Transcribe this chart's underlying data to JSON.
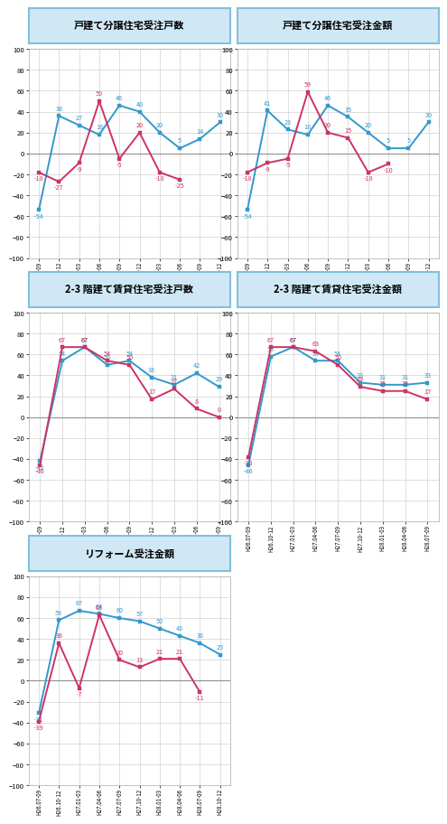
{
  "charts": [
    {
      "title": "戸建て分譲住宅受注戸数",
      "blue": [
        -54,
        36,
        27,
        18,
        46,
        40,
        20,
        5,
        14,
        30
      ],
      "red": [
        -18,
        -27,
        -9,
        50,
        -5,
        20,
        -18,
        -25,
        null,
        null
      ],
      "n": 10
    },
    {
      "title": "戸建て分譲住宅受注金額",
      "blue": [
        -54,
        41,
        23,
        18,
        46,
        35,
        20,
        5,
        5,
        30
      ],
      "red": [
        -18,
        -9,
        -5,
        59,
        20,
        15,
        -18,
        -10,
        null,
        null
      ],
      "n": 10
    },
    {
      "title": "2-3 階建て賃貸住宅受注戸数",
      "blue": [
        -42,
        54,
        67,
        50,
        54,
        38,
        31,
        42,
        29,
        null
      ],
      "red": [
        -46,
        67,
        67,
        54,
        50,
        17,
        27,
        8,
        0,
        null
      ],
      "n": 9
    },
    {
      "title": "2-3 階建て賃貸住宅受注金額",
      "blue": [
        -46,
        58,
        67,
        54,
        54,
        33,
        31,
        31,
        33,
        null
      ],
      "red": [
        -38,
        67,
        67,
        63,
        50,
        29,
        25,
        25,
        17,
        null
      ],
      "n": 9
    },
    {
      "title": "リフォーム受注金額",
      "blue": [
        -31,
        58,
        67,
        64,
        60,
        57,
        50,
        43,
        36,
        25
      ],
      "red": [
        -39,
        36,
        -7,
        63,
        20,
        13,
        21,
        21,
        -11,
        null
      ],
      "n": 10
    }
  ],
  "xlabels": [
    "H26.07-09",
    "H26.10-12",
    "H27.01-03",
    "H27.04-06",
    "H27.07-09",
    "H27.10-12",
    "H28.01-03",
    "H28.04-06",
    "H28.07-09",
    "H28.10-12"
  ],
  "blue_color": "#3399CC",
  "red_color": "#CC3366",
  "ylim": [
    -100,
    100
  ],
  "yticks": [
    -100,
    -80,
    -60,
    -40,
    -20,
    0,
    20,
    40,
    60,
    80,
    100
  ],
  "title_bg": "#D0E8F5",
  "title_border": "#80C0DC",
  "grid_color": "#CCCCCC",
  "zero_line_color": "#888888",
  "plot_bg": "#FFFFFF"
}
